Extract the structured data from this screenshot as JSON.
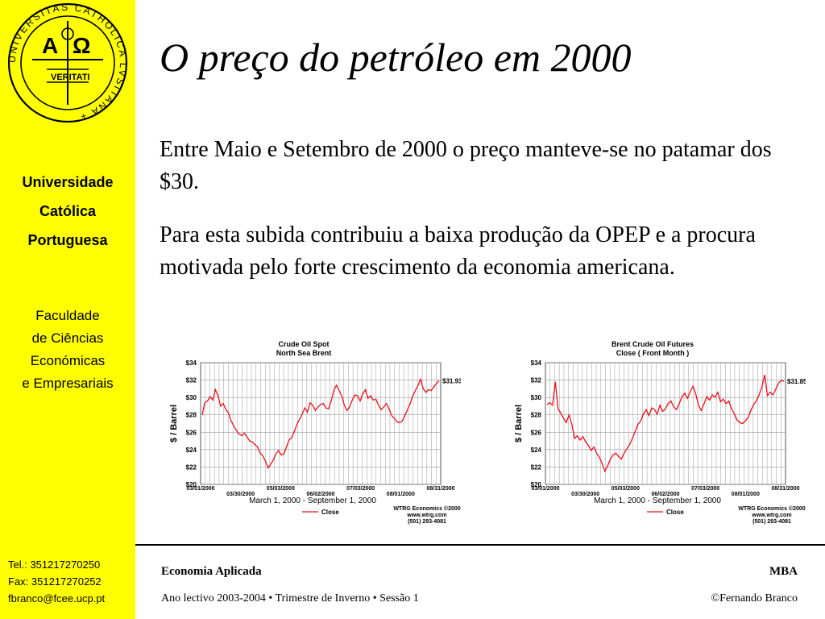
{
  "sidebar": {
    "university": [
      "Universidade",
      "Católica",
      "Portuguesa"
    ],
    "faculty": [
      "Faculdade",
      "de Ciências",
      "Económicas",
      "e Empresariais"
    ],
    "contact": [
      "Tel.: 351217270250",
      "Fax: 351217270252",
      "fbranco@fcee.ucp.pt"
    ]
  },
  "slide": {
    "title": "O preço do petróleo em 2000",
    "paragraphs": [
      "Entre Maio e Setembro de 2000 o preço manteve-se no patamar dos $30.",
      "Para esta subida contribuiu a baixa produção da OPEP e a procura motivada pelo forte crescimento da economia americana."
    ]
  },
  "footer": {
    "course": "Economia Aplicada",
    "program": "MBA",
    "session": "Ano lectivo 2003-2004 • Trimestre de Inverno • Sessão 1",
    "author": "©Fernando Branco"
  },
  "colors": {
    "sidebar": "#ffff00",
    "line": "#e8101a",
    "grid": "#9a9a9a"
  },
  "chart_data": [
    {
      "type": "line",
      "title": "Crude Oil Spot",
      "subtitle": "North Sea Brent",
      "ylabel": "$ / Barrel",
      "xlabel": "March 1, 2000 - September 1, 2000",
      "ylim": [
        20,
        34
      ],
      "yticks": [
        "$20",
        "$22",
        "$24",
        "$26",
        "$28",
        "$30",
        "$32",
        "$34"
      ],
      "xticks": [
        "03/01/2000",
        "03/30/2000",
        "05/03/2000",
        "06/02/2000",
        "07/03/2000",
        "08/01/2000",
        "08/31/2000"
      ],
      "legend": "Close",
      "end_label": "$31.93",
      "source": [
        "WTRG Economics ©2000",
        "www.wtrg.com",
        "(501) 293-4081"
      ],
      "grid": true,
      "values": [
        28.0,
        29.4,
        29.6,
        30.1,
        29.7,
        30.9,
        30.2,
        29.0,
        29.3,
        28.6,
        28.2,
        27.3,
        26.7,
        26.2,
        25.8,
        25.6,
        25.9,
        25.5,
        25.0,
        24.9,
        24.6,
        24.3,
        23.6,
        23.3,
        22.7,
        21.9,
        22.3,
        22.8,
        23.5,
        23.9,
        23.4,
        23.5,
        24.3,
        25.1,
        25.4,
        26.1,
        26.9,
        27.5,
        28.1,
        28.8,
        28.3,
        29.4,
        29.1,
        28.5,
        28.9,
        29.2,
        29.3,
        28.8,
        28.7,
        29.6,
        30.8,
        31.4,
        30.8,
        30.2,
        29.1,
        28.5,
        28.9,
        29.7,
        30.3,
        30.2,
        29.6,
        30.4,
        30.9,
        29.9,
        30.2,
        29.7,
        29.8,
        29.1,
        28.6,
        28.9,
        29.3,
        28.7,
        27.9,
        27.6,
        27.2,
        27.1,
        27.3,
        27.9,
        28.6,
        29.3,
        30.2,
        30.8,
        31.4,
        32.1,
        31.0,
        30.6,
        30.9,
        30.8,
        31.2,
        31.6,
        31.93
      ]
    },
    {
      "type": "line",
      "title": "Brent Crude Oil Futures",
      "subtitle": "Close ( Front Month )",
      "ylabel": "$ / Barrel",
      "xlabel": "March 1, 2000 - September 1, 2000",
      "ylim": [
        20,
        34
      ],
      "yticks": [
        "$20",
        "$22",
        "$24",
        "$26",
        "$28",
        "$30",
        "$32",
        "$34"
      ],
      "xticks": [
        "03/01/2000",
        "03/30/2000",
        "05/03/2000",
        "06/02/2000",
        "07/03/2000",
        "08/01/2000",
        "08/31/2000"
      ],
      "legend": "Close",
      "end_label": "$31.85",
      "source": [
        "WTRG Economics ©2000",
        "www.wtrg.com",
        "(501) 293-4081"
      ],
      "grid": true,
      "values": [
        29.2,
        29.4,
        29.1,
        31.8,
        28.7,
        28.2,
        27.6,
        27.1,
        28.0,
        26.9,
        25.3,
        25.6,
        25.1,
        25.5,
        24.9,
        24.5,
        23.9,
        24.3,
        23.6,
        23.1,
        22.4,
        21.5,
        22.1,
        22.9,
        23.4,
        23.6,
        23.2,
        22.9,
        23.6,
        24.1,
        24.6,
        25.3,
        26.1,
        26.9,
        27.3,
        28.1,
        28.6,
        27.9,
        28.8,
        28.6,
        28.1,
        29.1,
        28.4,
        28.7,
        29.3,
        29.6,
        28.9,
        28.6,
        29.3,
        30.1,
        30.5,
        29.9,
        30.7,
        31.3,
        30.4,
        29.1,
        28.5,
        29.3,
        30.1,
        29.7,
        30.3,
        30.0,
        30.6,
        29.5,
        29.8,
        29.3,
        29.6,
        28.7,
        28.1,
        27.4,
        27.1,
        27.0,
        27.3,
        27.7,
        28.5,
        29.2,
        29.6,
        30.3,
        31.2,
        32.6,
        30.2,
        30.6,
        30.3,
        30.9,
        31.6,
        32.0,
        31.85
      ]
    }
  ]
}
